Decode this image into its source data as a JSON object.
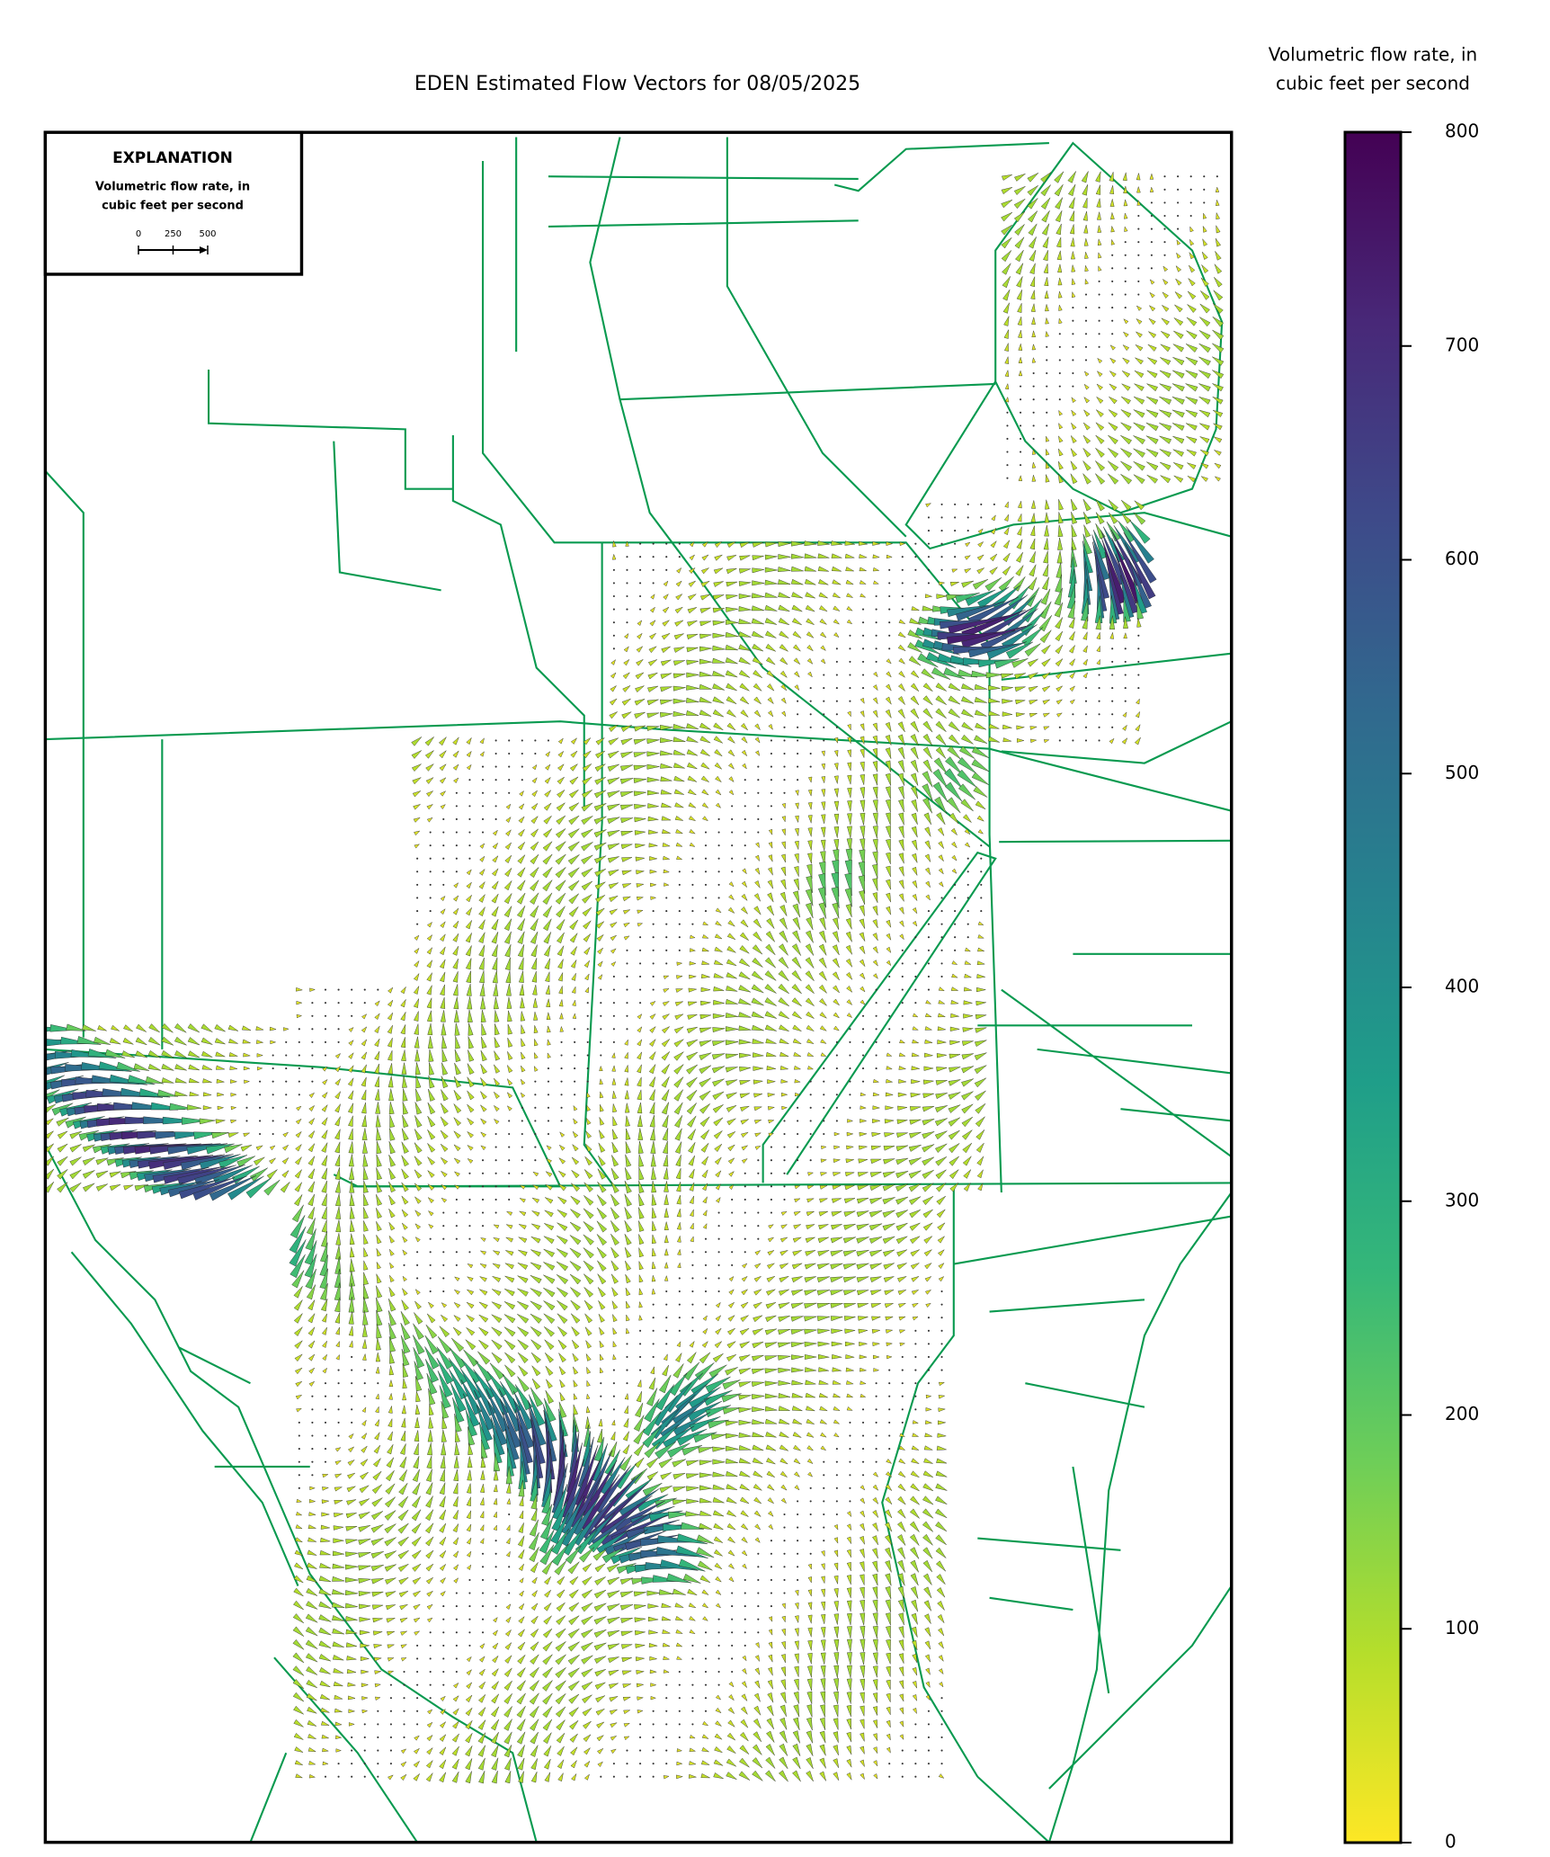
{
  "title": "EDEN Estimated Flow Vectors for 08/05/2025",
  "colorbar": {
    "label": [
      "Volumetric flow rate, in",
      "cubic feet per second"
    ],
    "lim": [
      0,
      800
    ],
    "ticks": [
      0,
      100,
      200,
      300,
      400,
      500,
      600,
      700,
      800
    ],
    "colormap": [
      "#fde725",
      "#b5de2b",
      "#6ece58",
      "#35b779",
      "#1f9e89",
      "#26828e",
      "#31688e",
      "#3e4989",
      "#482878",
      "#440154"
    ]
  },
  "explanation": {
    "title": "EXPLANATION",
    "label": [
      "Volumetric flow rate, in",
      "cubic feet per second"
    ],
    "scale_ticks": [
      0,
      250,
      500
    ]
  }
}
